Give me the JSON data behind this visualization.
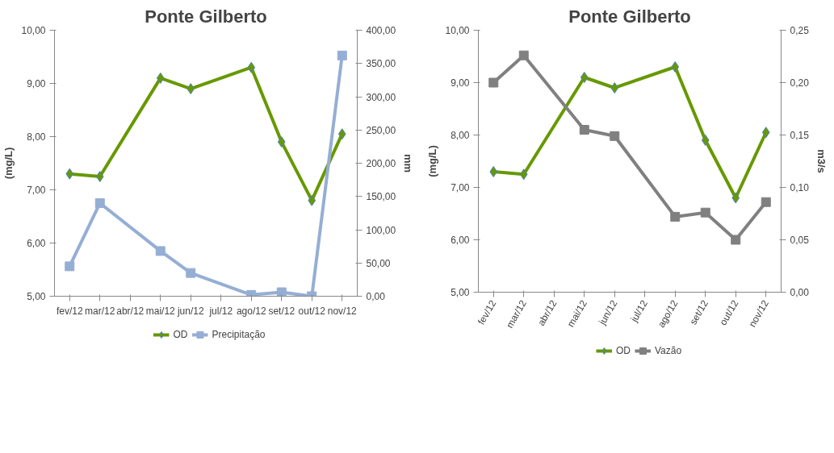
{
  "chart_data": [
    {
      "type": "line",
      "title": "Ponte Gilberto",
      "ylabel": "(mg/L)",
      "y2label": "mm",
      "categories": [
        "fev/12",
        "mar/12",
        "abr/12",
        "mai/12",
        "jun/12",
        "jul/12",
        "ago/12",
        "set/12",
        "out/12",
        "nov/12"
      ],
      "series": [
        {
          "name": "OD",
          "color": "#669900",
          "marker": "diamond",
          "values": [
            7.3,
            7.25,
            null,
            9.1,
            8.9,
            null,
            9.3,
            7.9,
            6.8,
            8.05
          ]
        },
        {
          "name": "Precipitação",
          "color": "#95aed4",
          "marker": "square",
          "axis": "y2",
          "values": [
            45,
            140,
            null,
            68,
            35,
            null,
            2,
            6,
            0,
            362
          ]
        }
      ],
      "ylim": [
        5,
        10
      ],
      "yticks": [
        {
          "value": 5,
          "label": "5,00"
        },
        {
          "value": 6,
          "label": "6,00"
        },
        {
          "value": 7,
          "label": "7,00"
        },
        {
          "value": 8,
          "label": "8,00"
        },
        {
          "value": 9,
          "label": "9,00"
        },
        {
          "value": 10,
          "label": "10,00"
        }
      ],
      "y2lim": [
        0,
        400
      ],
      "y2ticks": [
        {
          "value": 0,
          "label": "0,00"
        },
        {
          "value": 50,
          "label": "50,00"
        },
        {
          "value": 100,
          "label": "100,00"
        },
        {
          "value": 150,
          "label": "150,00"
        },
        {
          "value": 200,
          "label": "200,00"
        },
        {
          "value": 250,
          "label": "250,00"
        },
        {
          "value": 300,
          "label": "300,00"
        },
        {
          "value": 350,
          "label": "350,00"
        },
        {
          "value": 400,
          "label": "400,00"
        }
      ],
      "grid": false,
      "legend": "bottom"
    },
    {
      "type": "line",
      "title": "Ponte Gilberto",
      "ylabel": "(mg/L)",
      "y2label": "m3/s",
      "categories": [
        "fev/12",
        "mar/12",
        "abr/12",
        "mai/12",
        "jun/12",
        "jul/12",
        "ago/12",
        "set/12",
        "out/12",
        "nov/12"
      ],
      "series": [
        {
          "name": "OD",
          "color": "#669900",
          "marker": "diamond",
          "values": [
            7.3,
            7.25,
            null,
            9.1,
            8.9,
            null,
            9.3,
            7.9,
            6.8,
            8.05
          ]
        },
        {
          "name": "Vazão",
          "color": "#808080",
          "marker": "square",
          "axis": "y2",
          "values": [
            0.2,
            0.226,
            null,
            0.155,
            0.149,
            null,
            0.072,
            0.076,
            0.05,
            0.086
          ]
        }
      ],
      "ylim": [
        5,
        10
      ],
      "yticks": [
        {
          "value": 5,
          "label": "5,00"
        },
        {
          "value": 6,
          "label": "6,00"
        },
        {
          "value": 7,
          "label": "7,00"
        },
        {
          "value": 8,
          "label": "8,00"
        },
        {
          "value": 9,
          "label": "9,00"
        },
        {
          "value": 10,
          "label": "10,00"
        }
      ],
      "y2lim": [
        0,
        0.25
      ],
      "y2ticks": [
        {
          "value": 0,
          "label": "0,00"
        },
        {
          "value": 0.05,
          "label": "0,05"
        },
        {
          "value": 0.1,
          "label": "0,10"
        },
        {
          "value": 0.15,
          "label": "0,15"
        },
        {
          "value": 0.2,
          "label": "0,20"
        },
        {
          "value": 0.25,
          "label": "0,25"
        }
      ],
      "grid": false,
      "legend": "bottom"
    }
  ]
}
